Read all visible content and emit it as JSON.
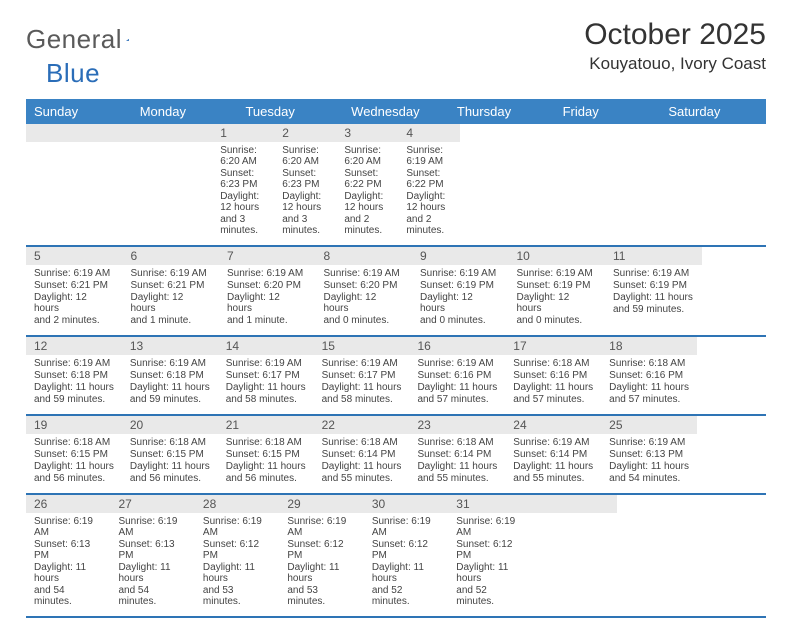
{
  "logo": {
    "text_a": "General",
    "text_b": "Blue"
  },
  "title": "October 2025",
  "location": "Kouyatouo, Ivory Coast",
  "colors": {
    "header_bg": "#3a83c4",
    "header_text": "#ffffff",
    "strip_bg": "#e9e9e9",
    "week_divider": "#2e74b5",
    "logo_gray": "#5a5a5a",
    "logo_blue": "#2a6db8"
  },
  "day_names": [
    "Sunday",
    "Monday",
    "Tuesday",
    "Wednesday",
    "Thursday",
    "Friday",
    "Saturday"
  ],
  "weeks": [
    [
      {
        "num": "",
        "sunrise": "",
        "sunset": "",
        "daylight1": "",
        "daylight2": ""
      },
      {
        "num": "",
        "sunrise": "",
        "sunset": "",
        "daylight1": "",
        "daylight2": ""
      },
      {
        "num": "",
        "sunrise": "",
        "sunset": "",
        "daylight1": "",
        "daylight2": ""
      },
      {
        "num": "1",
        "sunrise": "Sunrise: 6:20 AM",
        "sunset": "Sunset: 6:23 PM",
        "daylight1": "Daylight: 12 hours",
        "daylight2": "and 3 minutes."
      },
      {
        "num": "2",
        "sunrise": "Sunrise: 6:20 AM",
        "sunset": "Sunset: 6:23 PM",
        "daylight1": "Daylight: 12 hours",
        "daylight2": "and 3 minutes."
      },
      {
        "num": "3",
        "sunrise": "Sunrise: 6:20 AM",
        "sunset": "Sunset: 6:22 PM",
        "daylight1": "Daylight: 12 hours",
        "daylight2": "and 2 minutes."
      },
      {
        "num": "4",
        "sunrise": "Sunrise: 6:19 AM",
        "sunset": "Sunset: 6:22 PM",
        "daylight1": "Daylight: 12 hours",
        "daylight2": "and 2 minutes."
      }
    ],
    [
      {
        "num": "5",
        "sunrise": "Sunrise: 6:19 AM",
        "sunset": "Sunset: 6:21 PM",
        "daylight1": "Daylight: 12 hours",
        "daylight2": "and 2 minutes."
      },
      {
        "num": "6",
        "sunrise": "Sunrise: 6:19 AM",
        "sunset": "Sunset: 6:21 PM",
        "daylight1": "Daylight: 12 hours",
        "daylight2": "and 1 minute."
      },
      {
        "num": "7",
        "sunrise": "Sunrise: 6:19 AM",
        "sunset": "Sunset: 6:20 PM",
        "daylight1": "Daylight: 12 hours",
        "daylight2": "and 1 minute."
      },
      {
        "num": "8",
        "sunrise": "Sunrise: 6:19 AM",
        "sunset": "Sunset: 6:20 PM",
        "daylight1": "Daylight: 12 hours",
        "daylight2": "and 0 minutes."
      },
      {
        "num": "9",
        "sunrise": "Sunrise: 6:19 AM",
        "sunset": "Sunset: 6:19 PM",
        "daylight1": "Daylight: 12 hours",
        "daylight2": "and 0 minutes."
      },
      {
        "num": "10",
        "sunrise": "Sunrise: 6:19 AM",
        "sunset": "Sunset: 6:19 PM",
        "daylight1": "Daylight: 12 hours",
        "daylight2": "and 0 minutes."
      },
      {
        "num": "11",
        "sunrise": "Sunrise: 6:19 AM",
        "sunset": "Sunset: 6:19 PM",
        "daylight1": "Daylight: 11 hours",
        "daylight2": "and 59 minutes."
      }
    ],
    [
      {
        "num": "12",
        "sunrise": "Sunrise: 6:19 AM",
        "sunset": "Sunset: 6:18 PM",
        "daylight1": "Daylight: 11 hours",
        "daylight2": "and 59 minutes."
      },
      {
        "num": "13",
        "sunrise": "Sunrise: 6:19 AM",
        "sunset": "Sunset: 6:18 PM",
        "daylight1": "Daylight: 11 hours",
        "daylight2": "and 59 minutes."
      },
      {
        "num": "14",
        "sunrise": "Sunrise: 6:19 AM",
        "sunset": "Sunset: 6:17 PM",
        "daylight1": "Daylight: 11 hours",
        "daylight2": "and 58 minutes."
      },
      {
        "num": "15",
        "sunrise": "Sunrise: 6:19 AM",
        "sunset": "Sunset: 6:17 PM",
        "daylight1": "Daylight: 11 hours",
        "daylight2": "and 58 minutes."
      },
      {
        "num": "16",
        "sunrise": "Sunrise: 6:19 AM",
        "sunset": "Sunset: 6:16 PM",
        "daylight1": "Daylight: 11 hours",
        "daylight2": "and 57 minutes."
      },
      {
        "num": "17",
        "sunrise": "Sunrise: 6:18 AM",
        "sunset": "Sunset: 6:16 PM",
        "daylight1": "Daylight: 11 hours",
        "daylight2": "and 57 minutes."
      },
      {
        "num": "18",
        "sunrise": "Sunrise: 6:18 AM",
        "sunset": "Sunset: 6:16 PM",
        "daylight1": "Daylight: 11 hours",
        "daylight2": "and 57 minutes."
      }
    ],
    [
      {
        "num": "19",
        "sunrise": "Sunrise: 6:18 AM",
        "sunset": "Sunset: 6:15 PM",
        "daylight1": "Daylight: 11 hours",
        "daylight2": "and 56 minutes."
      },
      {
        "num": "20",
        "sunrise": "Sunrise: 6:18 AM",
        "sunset": "Sunset: 6:15 PM",
        "daylight1": "Daylight: 11 hours",
        "daylight2": "and 56 minutes."
      },
      {
        "num": "21",
        "sunrise": "Sunrise: 6:18 AM",
        "sunset": "Sunset: 6:15 PM",
        "daylight1": "Daylight: 11 hours",
        "daylight2": "and 56 minutes."
      },
      {
        "num": "22",
        "sunrise": "Sunrise: 6:18 AM",
        "sunset": "Sunset: 6:14 PM",
        "daylight1": "Daylight: 11 hours",
        "daylight2": "and 55 minutes."
      },
      {
        "num": "23",
        "sunrise": "Sunrise: 6:18 AM",
        "sunset": "Sunset: 6:14 PM",
        "daylight1": "Daylight: 11 hours",
        "daylight2": "and 55 minutes."
      },
      {
        "num": "24",
        "sunrise": "Sunrise: 6:19 AM",
        "sunset": "Sunset: 6:14 PM",
        "daylight1": "Daylight: 11 hours",
        "daylight2": "and 55 minutes."
      },
      {
        "num": "25",
        "sunrise": "Sunrise: 6:19 AM",
        "sunset": "Sunset: 6:13 PM",
        "daylight1": "Daylight: 11 hours",
        "daylight2": "and 54 minutes."
      }
    ],
    [
      {
        "num": "26",
        "sunrise": "Sunrise: 6:19 AM",
        "sunset": "Sunset: 6:13 PM",
        "daylight1": "Daylight: 11 hours",
        "daylight2": "and 54 minutes."
      },
      {
        "num": "27",
        "sunrise": "Sunrise: 6:19 AM",
        "sunset": "Sunset: 6:13 PM",
        "daylight1": "Daylight: 11 hours",
        "daylight2": "and 54 minutes."
      },
      {
        "num": "28",
        "sunrise": "Sunrise: 6:19 AM",
        "sunset": "Sunset: 6:12 PM",
        "daylight1": "Daylight: 11 hours",
        "daylight2": "and 53 minutes."
      },
      {
        "num": "29",
        "sunrise": "Sunrise: 6:19 AM",
        "sunset": "Sunset: 6:12 PM",
        "daylight1": "Daylight: 11 hours",
        "daylight2": "and 53 minutes."
      },
      {
        "num": "30",
        "sunrise": "Sunrise: 6:19 AM",
        "sunset": "Sunset: 6:12 PM",
        "daylight1": "Daylight: 11 hours",
        "daylight2": "and 52 minutes."
      },
      {
        "num": "31",
        "sunrise": "Sunrise: 6:19 AM",
        "sunset": "Sunset: 6:12 PM",
        "daylight1": "Daylight: 11 hours",
        "daylight2": "and 52 minutes."
      },
      {
        "num": "",
        "sunrise": "",
        "sunset": "",
        "daylight1": "",
        "daylight2": ""
      }
    ]
  ]
}
